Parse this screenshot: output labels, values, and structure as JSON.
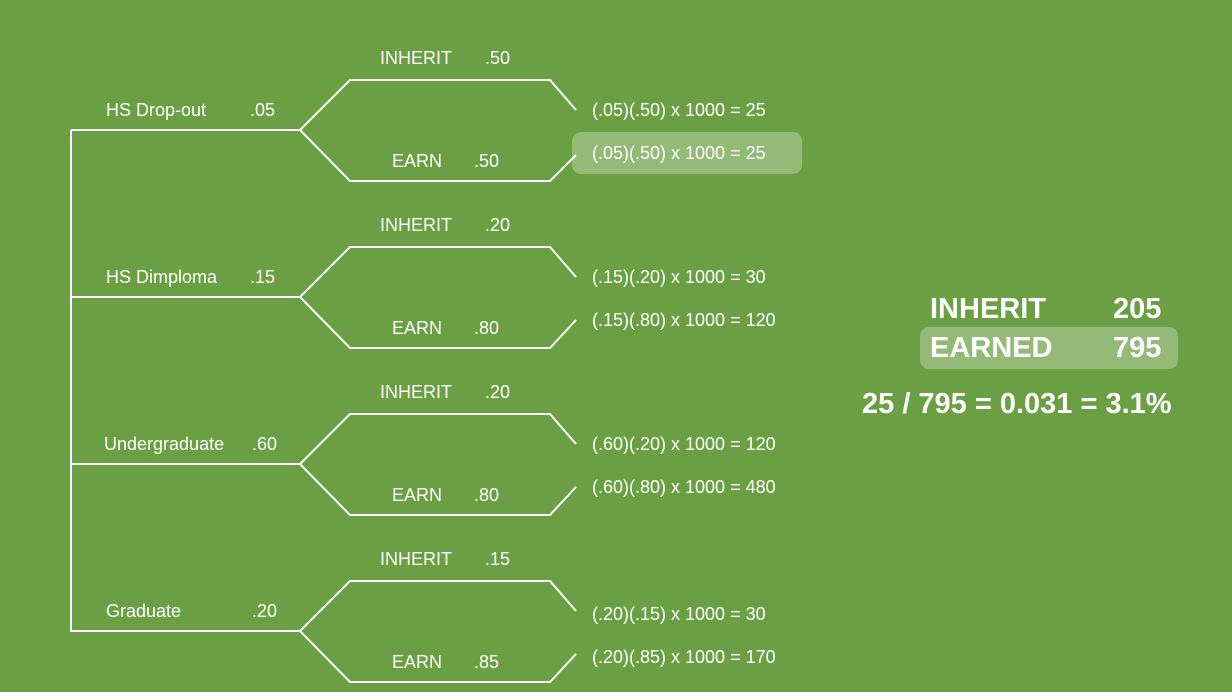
{
  "branches": [
    {
      "category": "HS Drop-out",
      "prob": ".05",
      "inherit_label": "INHERIT",
      "inherit_prob": ".50",
      "earn_label": "EARN",
      "earn_prob": ".50",
      "inherit_calc": "(.05)(.50) x 1000 = 25",
      "earn_calc": "(.05)(.50) x 1000 = 25"
    },
    {
      "category": "HS Dimploma",
      "prob": ".15",
      "inherit_label": "INHERIT",
      "inherit_prob": ".20",
      "earn_label": "EARN",
      "earn_prob": ".80",
      "inherit_calc": "(.15)(.20) x 1000 = 30",
      "earn_calc": "(.15)(.80) x 1000 = 120"
    },
    {
      "category": "Undergraduate",
      "prob": ".60",
      "inherit_label": "INHERIT",
      "inherit_prob": ".20",
      "earn_label": "EARN",
      "earn_prob": ".80",
      "inherit_calc": "(.60)(.20) x 1000 = 120",
      "earn_calc": "(.60)(.80) x 1000 = 480"
    },
    {
      "category": "Graduate",
      "prob": ".20",
      "inherit_label": "INHERIT",
      "inherit_prob": ".15",
      "earn_label": "EARN",
      "earn_prob": ".85",
      "inherit_calc": "(.20)(.15) x 1000 = 30",
      "earn_calc": "(.20)(.85) x 1000 = 170"
    }
  ],
  "summary": {
    "inherit_label": "INHERIT",
    "inherit_value": "205",
    "earned_label": "EARNED",
    "earned_value": "795",
    "equation": "25 / 795 = 0.031 = 3.1%"
  },
  "colors": {
    "background": "#6aa043",
    "line": "#ffffff",
    "highlight": "rgba(255,255,255,0.28)"
  }
}
